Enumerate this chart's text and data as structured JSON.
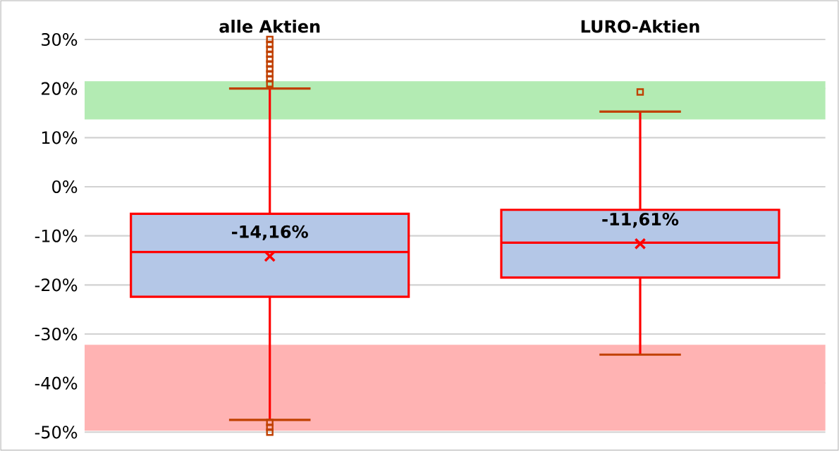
{
  "chart_data": {
    "type": "box",
    "categories": [
      "alle Aktien",
      "LURO-Aktien"
    ],
    "boxes": [
      {
        "low": -47.5,
        "q1": -22.4,
        "median": -13.3,
        "q3": -5.5,
        "high": 20,
        "mean": -14.16,
        "outliers": [
          21,
          22,
          23,
          24,
          25,
          26,
          27,
          28,
          29,
          30,
          -48,
          -49,
          -50
        ]
      },
      {
        "low": -34.2,
        "q1": -18.5,
        "median": -11.4,
        "q3": -4.7,
        "high": 15.3,
        "mean": -11.61,
        "outliers": [
          19.3
        ]
      }
    ],
    "color": "#b4c7e7",
    "ylim": [
      -50,
      30
    ],
    "yticks": [
      {
        "value": -50,
        "label": "-50%"
      },
      {
        "value": -40,
        "label": "-40%"
      },
      {
        "value": -30,
        "label": "-30%"
      },
      {
        "value": -20,
        "label": "-20%"
      },
      {
        "value": -10,
        "label": "-10%"
      },
      {
        "value": 0,
        "label": "0%"
      },
      {
        "value": 10,
        "label": "10%"
      },
      {
        "value": 20,
        "label": "20%"
      },
      {
        "value": 30,
        "label": "30%"
      }
    ],
    "grid": "y",
    "bands": [
      {
        "axis": "y",
        "from": 13.7,
        "to": 21.5,
        "color": "#b3ebb3"
      },
      {
        "axis": "y",
        "from": -49.7,
        "to": -32.2,
        "color": "#ffb3b3"
      }
    ],
    "annotations": [
      {
        "text": "-14,16%",
        "x": "alle Aktien",
        "y": -14.16
      },
      {
        "text": "-11,61%",
        "x": "LURO-Aktien",
        "y": -11.61
      }
    ]
  }
}
